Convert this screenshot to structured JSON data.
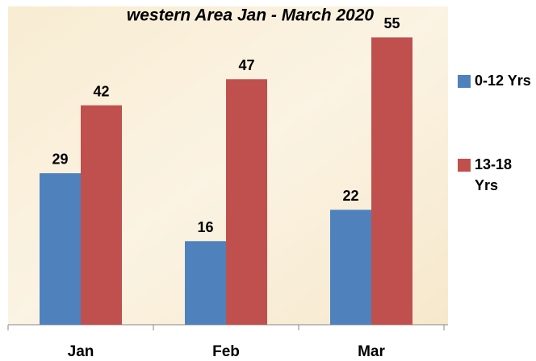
{
  "chart_data": {
    "type": "bar",
    "title": "western Area Jan - March 2020",
    "categories": [
      "Jan",
      "Feb",
      "Mar"
    ],
    "series": [
      {
        "name": "0-12 Yrs",
        "color": "#4f81bd",
        "values": [
          29,
          16,
          22
        ]
      },
      {
        "name": "13-18 Yrs",
        "color": "#c0504d",
        "values": [
          42,
          47,
          55
        ]
      }
    ],
    "ylim": [
      0,
      60
    ],
    "legend": "right"
  }
}
